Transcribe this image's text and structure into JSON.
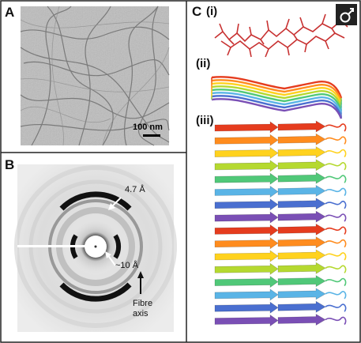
{
  "panels": {
    "a": {
      "letter": "A",
      "scale_bar_label": "100 nm"
    },
    "b": {
      "letter": "B",
      "label_47": "4.7 Å",
      "label_10": "~10 Å",
      "fibre_axis": "Fibre\naxis"
    },
    "c": {
      "letter": "C",
      "sub_i": "(i)",
      "sub_ii": "(ii)",
      "sub_iii": "(iii)"
    }
  },
  "colors": {
    "border": "#222222",
    "molecule": "#c83232",
    "strand_palette": [
      "#7a4fb5",
      "#4a6fd0",
      "#5ab4e6",
      "#50c878",
      "#b5d930",
      "#ffd21e",
      "#ff8c1e",
      "#e53c1e"
    ]
  },
  "icons": {
    "corner_logo": "gender-symbol-icon"
  }
}
